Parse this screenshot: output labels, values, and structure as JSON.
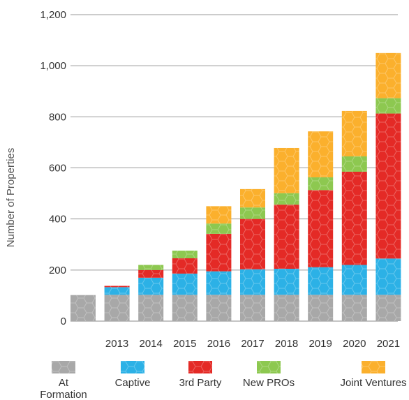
{
  "chart_data": {
    "type": "bar",
    "stacked": true,
    "title": "",
    "xlabel": "",
    "ylabel": "Number of Properties",
    "ylim": [
      0,
      1200
    ],
    "yticks": [
      0,
      200,
      400,
      600,
      800,
      1000,
      1200
    ],
    "ytick_labels": [
      "0",
      "200",
      "400",
      "600",
      "800",
      "1,000",
      "1,200"
    ],
    "categories": [
      "",
      "2013",
      "2014",
      "2015",
      "2016",
      "2017",
      "2018",
      "2019",
      "2020",
      "2021"
    ],
    "series": [
      {
        "name": "At Formation",
        "color": "#a8a8a8",
        "values": [
          102,
          103,
          103,
          103,
          103,
          103,
          103,
          103,
          103,
          103
        ]
      },
      {
        "name": "Captive",
        "color": "#2cb1e6",
        "values": [
          0,
          30,
          67,
          83,
          92,
          100,
          102,
          108,
          117,
          142
        ]
      },
      {
        "name": "3rd Party",
        "color": "#e42a26",
        "values": [
          0,
          5,
          30,
          60,
          147,
          197,
          251,
          302,
          365,
          568
        ]
      },
      {
        "name": "New PROs",
        "color": "#8dc850",
        "values": [
          0,
          0,
          20,
          30,
          40,
          45,
          45,
          50,
          60,
          60
        ]
      },
      {
        "name": "Joint Ventures",
        "color": "#fbb02d",
        "values": [
          0,
          0,
          0,
          0,
          68,
          72,
          177,
          180,
          178,
          177
        ]
      }
    ],
    "legend": {
      "position": "bottom",
      "labels": [
        [
          "At",
          "Formation"
        ],
        [
          "Captive"
        ],
        [
          "3rd Party"
        ],
        [
          "New PROs"
        ],
        [
          "Joint Ventures"
        ]
      ]
    },
    "grid": "horizontal"
  }
}
